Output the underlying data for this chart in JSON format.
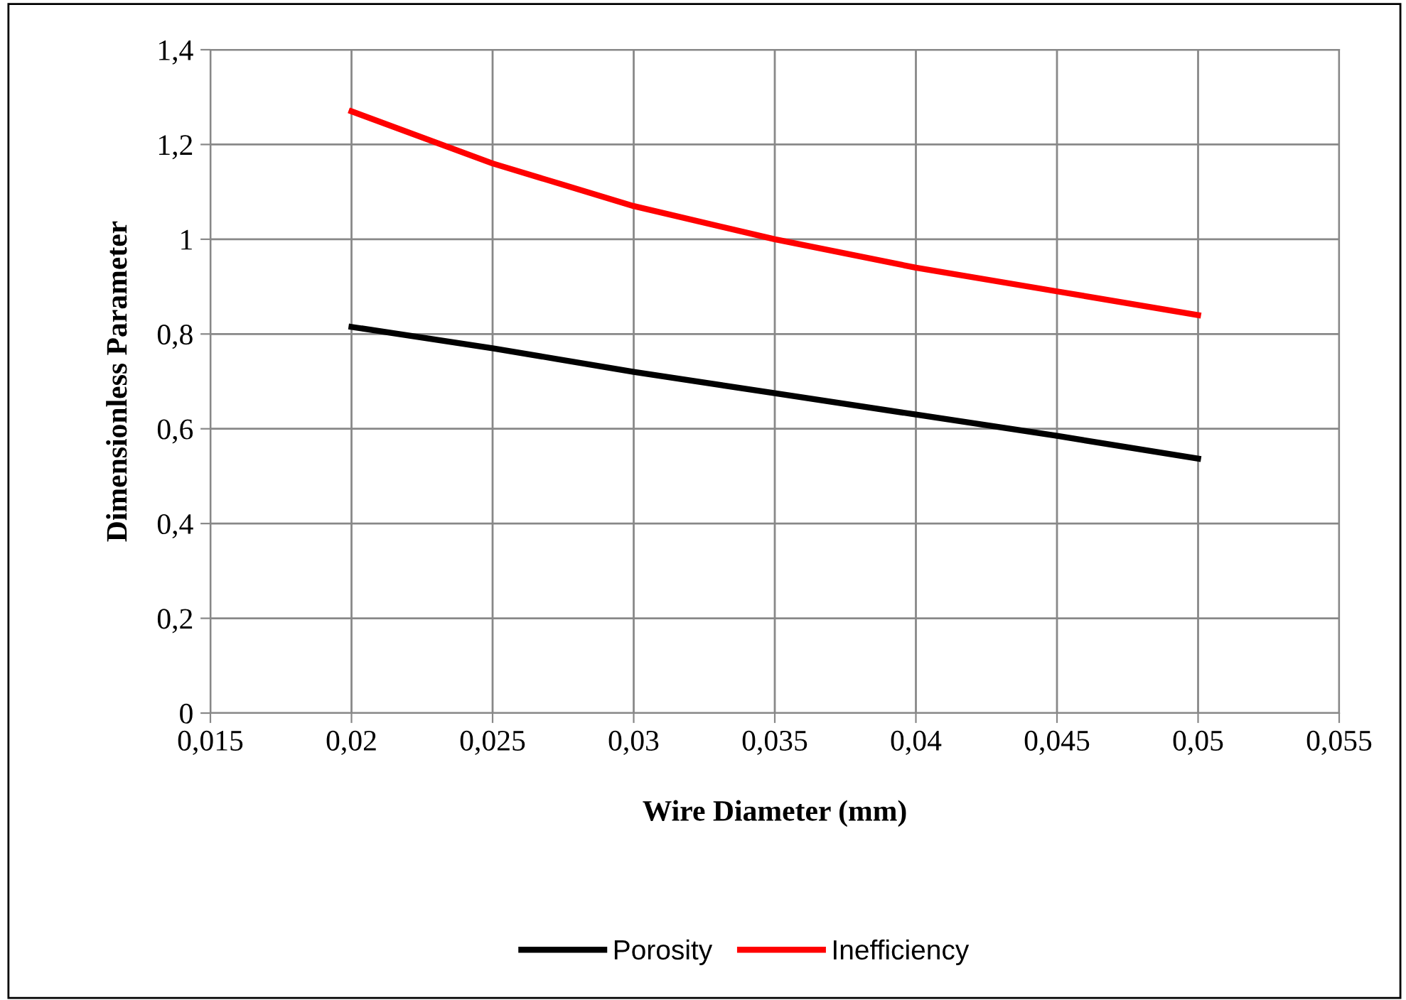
{
  "chart_data": {
    "type": "line",
    "xlabel": "Wire Diameter (mm)",
    "ylabel": "Dimensionless Parameter",
    "x": [
      0.02,
      0.025,
      0.03,
      0.035,
      0.04,
      0.045,
      0.05
    ],
    "series": [
      {
        "name": "Porosity",
        "color": "#000000",
        "values": [
          0.815,
          0.77,
          0.72,
          0.675,
          0.63,
          0.585,
          0.537
        ]
      },
      {
        "name": "Inefficiency",
        "color": "#ff0000",
        "values": [
          1.27,
          1.16,
          1.07,
          1.0,
          0.94,
          0.89,
          0.84
        ]
      }
    ],
    "xlim": [
      0.015,
      0.055
    ],
    "xticks": [
      {
        "value": 0.015,
        "label": "0,015"
      },
      {
        "value": 0.02,
        "label": "0,02"
      },
      {
        "value": 0.025,
        "label": "0,025"
      },
      {
        "value": 0.03,
        "label": "0,03"
      },
      {
        "value": 0.035,
        "label": "0,035"
      },
      {
        "value": 0.04,
        "label": "0,04"
      },
      {
        "value": 0.045,
        "label": "0,045"
      },
      {
        "value": 0.05,
        "label": "0,05"
      },
      {
        "value": 0.055,
        "label": "0,055"
      }
    ],
    "ylim": [
      0,
      1.4
    ],
    "yticks": [
      0,
      {
        "value": 0.2,
        "label": "0,2"
      },
      {
        "value": 0.4,
        "label": "0,4"
      },
      {
        "value": 0.6,
        "label": "0,6"
      },
      {
        "value": 0.8,
        "label": "0,8"
      },
      1,
      {
        "value": 1.2,
        "label": "1,2"
      },
      {
        "value": 1.4,
        "label": "1,4"
      }
    ],
    "grid": true,
    "legend": "bottom",
    "marker": "none",
    "line_style": "solid"
  }
}
